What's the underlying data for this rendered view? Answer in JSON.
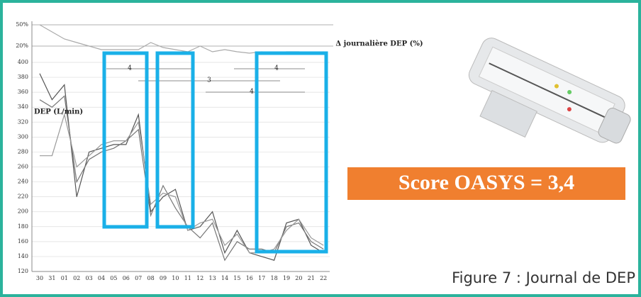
{
  "chart_data": [
    {
      "type": "line",
      "y_label": "DEP (L/min)",
      "categories": [
        "30",
        "31",
        "01",
        "02",
        "03",
        "04",
        "05",
        "06",
        "07",
        "08",
        "09",
        "10",
        "11",
        "12",
        "13",
        "14",
        "15",
        "16",
        "17",
        "18",
        "19",
        "20",
        "21",
        "22"
      ],
      "series": [
        {
          "color": "#555555",
          "values": [
            385,
            350,
            370,
            220,
            280,
            285,
            290,
            290,
            330,
            200,
            220,
            230,
            175,
            180,
            200,
            145,
            175,
            145,
            140,
            135,
            185,
            190,
            155,
            145
          ]
        },
        {
          "color": "#777777",
          "values": [
            350,
            340,
            355,
            240,
            270,
            280,
            285,
            295,
            310,
            195,
            235,
            205,
            180,
            165,
            185,
            135,
            160,
            150,
            150,
            145,
            180,
            185,
            160,
            150
          ]
        },
        {
          "color": "#999999",
          "values": [
            275,
            275,
            330,
            260,
            275,
            290,
            295,
            295,
            320,
            210,
            225,
            220,
            175,
            185,
            190,
            155,
            170,
            145,
            145,
            150,
            175,
            190,
            165,
            155
          ]
        }
      ],
      "ylim": [
        120,
        400
      ],
      "yticks": [
        120,
        140,
        160,
        180,
        200,
        220,
        240,
        260,
        280,
        300,
        320,
        340,
        360,
        380,
        400
      ]
    },
    {
      "type": "line",
      "y_label": "Δ journalière DEP (%)",
      "series": [
        {
          "color": "#aaaaaa",
          "values": [
            50,
            40,
            30,
            25,
            20,
            15,
            15,
            15,
            15,
            25,
            18,
            15,
            12,
            20,
            12,
            15,
            12,
            10,
            12,
            10,
            12,
            12,
            10,
            12
          ]
        }
      ],
      "ylim": [
        0,
        55
      ],
      "yticks": [
        {
          "value": 50,
          "label": "50%"
        },
        {
          "value": 20,
          "label": "20%"
        }
      ]
    }
  ],
  "annotations": [
    "4",
    "3",
    "4",
    "4"
  ],
  "score": "Score OASYS = 3,4",
  "caption": "Figure 7 : Journal de DEP"
}
